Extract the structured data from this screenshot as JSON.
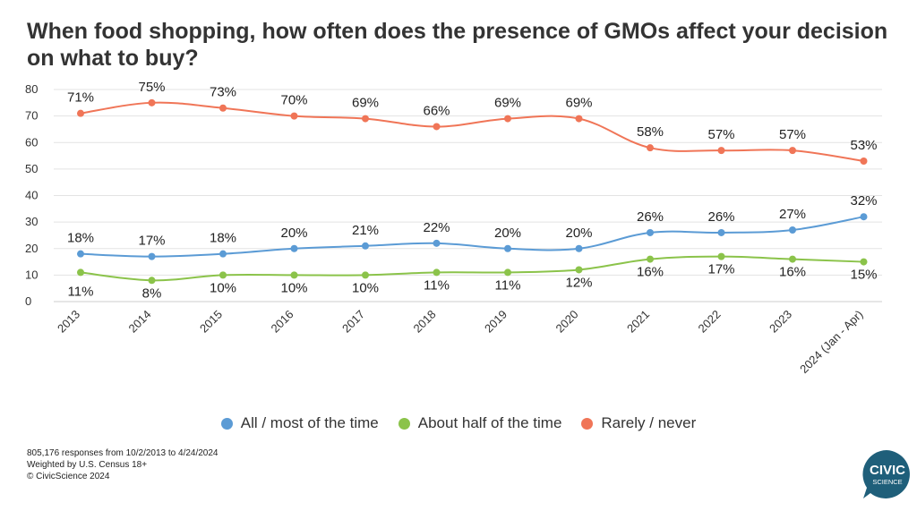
{
  "title": "When food shopping, how often does the presence of GMOs affect your decision on what to buy?",
  "footnotes": [
    "805,176 responses from 10/2/2013 to 4/24/2024",
    "Weighted by U.S. Census 18+",
    "© CivicScience 2024"
  ],
  "logo": {
    "line1": "CIVIC",
    "line2": "SCIENCE",
    "color": "#1f5f7a"
  },
  "chart_data": {
    "type": "line",
    "x": [
      "2013",
      "2014",
      "2015",
      "2016",
      "2017",
      "2018",
      "2019",
      "2020",
      "2021",
      "2022",
      "2023",
      "2024 (Jan - Apr)"
    ],
    "ylim": [
      0,
      80
    ],
    "yticks": [
      0,
      10,
      20,
      30,
      40,
      50,
      60,
      70,
      80
    ],
    "grid": true,
    "legend_position": "bottom",
    "series": [
      {
        "name": "All / most of the time",
        "color": "#5b9bd5",
        "values": [
          18,
          17,
          18,
          20,
          21,
          22,
          20,
          20,
          26,
          26,
          27,
          32
        ]
      },
      {
        "name": "About half of the time",
        "color": "#8bc34a",
        "values": [
          11,
          8,
          10,
          10,
          10,
          11,
          11,
          12,
          16,
          17,
          16,
          15
        ]
      },
      {
        "name": "Rarely / never",
        "color": "#f07557",
        "values": [
          71,
          75,
          73,
          70,
          69,
          66,
          69,
          69,
          58,
          57,
          57,
          53
        ]
      }
    ]
  }
}
